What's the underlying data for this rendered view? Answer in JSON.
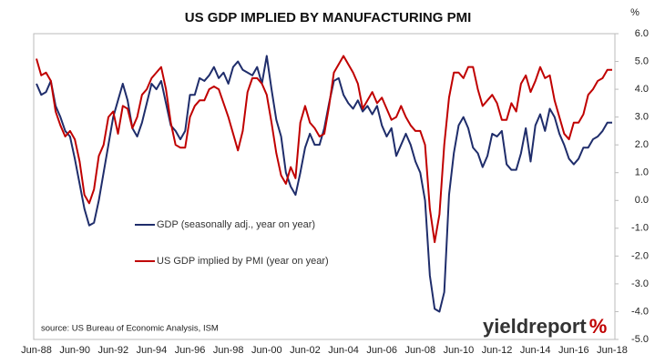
{
  "chart_data": {
    "type": "line",
    "title": "US GDP IMPLIED BY MANUFACTURING PMI",
    "y_unit": "%",
    "source": "source: US Bureau of Economic Analysis, ISM",
    "watermark": [
      "yield",
      "report",
      "%"
    ],
    "legend": "center left",
    "grid": false,
    "ylim": [
      -5,
      6
    ],
    "yticks": [
      {
        "value": 6,
        "label": "6.0"
      },
      {
        "value": 5,
        "label": "5.0"
      },
      {
        "value": 4,
        "label": "4.0"
      },
      {
        "value": 3,
        "label": "3.0"
      },
      {
        "value": 2,
        "label": "2.0"
      },
      {
        "value": 1,
        "label": "1.0"
      },
      {
        "value": 0,
        "label": "0.0"
      },
      {
        "value": -1,
        "label": "-1.0"
      },
      {
        "value": -2,
        "label": "-2.0"
      },
      {
        "value": -3,
        "label": "-3.0"
      },
      {
        "value": -4,
        "label": "-4.0"
      },
      {
        "value": -5,
        "label": "-5.0"
      }
    ],
    "categories": [
      "Jun-88",
      null,
      null,
      null,
      null,
      null,
      null,
      null,
      "Jun-90",
      null,
      null,
      null,
      null,
      null,
      null,
      null,
      "Jun-92",
      null,
      null,
      null,
      null,
      null,
      null,
      null,
      "Jun-94",
      null,
      null,
      null,
      null,
      null,
      null,
      null,
      "Jun-96",
      null,
      null,
      null,
      null,
      null,
      null,
      null,
      "Jun-98",
      null,
      null,
      null,
      null,
      null,
      null,
      null,
      "Jun-00",
      null,
      null,
      null,
      null,
      null,
      null,
      null,
      "Jun-02",
      null,
      null,
      null,
      null,
      null,
      null,
      null,
      "Jun-04",
      null,
      null,
      null,
      null,
      null,
      null,
      null,
      "Jun-06",
      null,
      null,
      null,
      null,
      null,
      null,
      null,
      "Jun-08",
      null,
      null,
      null,
      null,
      null,
      null,
      null,
      "Jun-10",
      null,
      null,
      null,
      null,
      null,
      null,
      null,
      "Jun-12",
      null,
      null,
      null,
      null,
      null,
      null,
      null,
      "Jun-14",
      null,
      null,
      null,
      null,
      null,
      null,
      null,
      "Jun-16",
      null,
      null,
      null,
      null,
      null,
      null,
      null,
      "Jun-18"
    ],
    "series": [
      {
        "name": "GDP (seasonally adj., year on year)",
        "color": "#1f2d6b",
        "values": [
          4.2,
          3.8,
          3.9,
          4.3,
          3.4,
          3.0,
          2.5,
          2.3,
          1.5,
          0.6,
          -0.3,
          -0.9,
          -0.8,
          0.0,
          1.0,
          2.0,
          3.0,
          3.6,
          4.2,
          3.6,
          2.6,
          2.3,
          2.8,
          3.5,
          4.2,
          4.0,
          4.3,
          3.5,
          2.7,
          2.5,
          2.2,
          2.5,
          3.8,
          3.8,
          4.4,
          4.3,
          4.5,
          4.8,
          4.4,
          4.6,
          4.2,
          4.8,
          5.0,
          4.7,
          4.6,
          4.5,
          4.8,
          4.2,
          5.2,
          4.0,
          2.9,
          2.3,
          1.0,
          0.5,
          0.2,
          1.0,
          1.9,
          2.4,
          2.0,
          2.0,
          2.6,
          3.5,
          4.3,
          4.4,
          3.8,
          3.5,
          3.3,
          3.6,
          3.2,
          3.4,
          3.1,
          3.4,
          2.7,
          2.3,
          2.6,
          1.6,
          2.0,
          2.4,
          2.0,
          1.4,
          1.0,
          0.0,
          -2.7,
          -3.9,
          -4.0,
          -3.3,
          0.2,
          1.7,
          2.7,
          3.0,
          2.6,
          1.9,
          1.7,
          1.2,
          1.6,
          2.4,
          2.3,
          2.5,
          1.3,
          1.1,
          1.1,
          1.7,
          2.6,
          1.4,
          2.7,
          3.1,
          2.5,
          3.3,
          3.0,
          2.4,
          2.0,
          1.5,
          1.3,
          1.5,
          1.9,
          1.9,
          2.2,
          2.3,
          2.5,
          2.8,
          2.8
        ]
      },
      {
        "name": "US GDP implied by PMI (year on year)",
        "color": "#c00000",
        "values": [
          5.1,
          4.5,
          4.6,
          4.3,
          3.2,
          2.7,
          2.3,
          2.5,
          2.2,
          1.4,
          0.2,
          -0.1,
          0.4,
          1.6,
          2.0,
          3.0,
          3.2,
          2.4,
          3.4,
          3.3,
          2.6,
          3.0,
          3.8,
          4.0,
          4.4,
          4.6,
          4.8,
          4.0,
          2.8,
          2.0,
          1.9,
          1.9,
          3.0,
          3.4,
          3.6,
          3.6,
          4.0,
          4.1,
          4.0,
          3.5,
          3.0,
          2.4,
          1.8,
          2.5,
          3.9,
          4.4,
          4.4,
          4.2,
          3.8,
          2.8,
          1.7,
          0.9,
          0.6,
          1.2,
          0.8,
          2.8,
          3.4,
          2.8,
          2.6,
          2.3,
          2.4,
          3.4,
          4.6,
          4.9,
          5.2,
          4.9,
          4.6,
          4.2,
          3.3,
          3.6,
          3.9,
          3.5,
          3.7,
          3.3,
          2.9,
          3.0,
          3.4,
          3.0,
          2.7,
          2.5,
          2.5,
          2.0,
          -0.3,
          -1.5,
          -0.5,
          2.0,
          3.7,
          4.6,
          4.6,
          4.4,
          4.8,
          4.8,
          4.0,
          3.4,
          3.6,
          3.8,
          3.5,
          2.9,
          2.9,
          3.5,
          3.2,
          4.2,
          4.5,
          3.9,
          4.3,
          4.8,
          4.4,
          4.5,
          3.6,
          3.0,
          2.4,
          2.2,
          2.8,
          2.8,
          3.1,
          3.8,
          4.0,
          4.3,
          4.4,
          4.7,
          4.7
        ]
      }
    ]
  }
}
